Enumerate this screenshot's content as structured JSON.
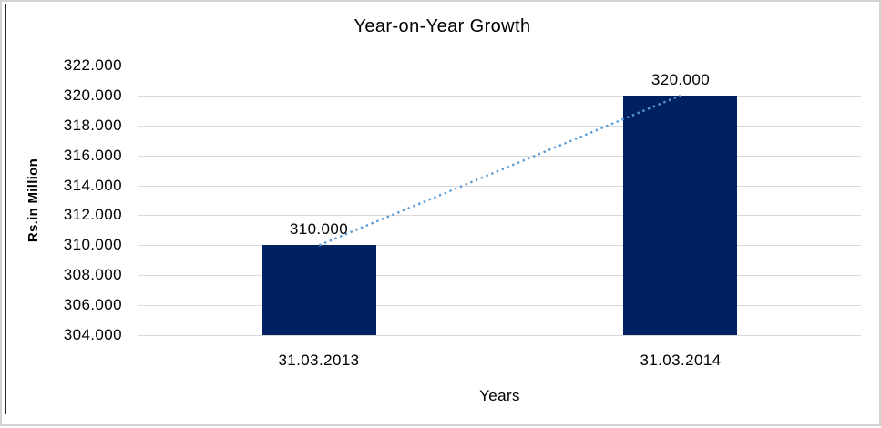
{
  "window": {
    "background": "#ffffff",
    "outer_border_color": "#d2d2d2",
    "left_rule_color": "#2a2a2a",
    "text_color": "#000000"
  },
  "chart_data": {
    "type": "bar",
    "title": "Year-on-Year Growth",
    "xlabel": "Years",
    "ylabel": "Rs.in Million",
    "categories": [
      "31.03.2013",
      "31.03.2014"
    ],
    "values": [
      310000,
      320000
    ],
    "data_labels": [
      "310.000",
      "320.000"
    ],
    "ylim": [
      304000,
      322000
    ],
    "ytick_values": [
      322000,
      320000,
      318000,
      316000,
      314000,
      312000,
      310000,
      308000,
      306000,
      304000
    ],
    "ytick_labels": [
      "322.000",
      "320.000",
      "318.000",
      "316.000",
      "314.000",
      "312.000",
      "310.000",
      "308.000",
      "306.000",
      "304.000"
    ],
    "grid": true,
    "legend": "none",
    "bar_color": "#002161",
    "gridline_color": "#d9d9d9",
    "trendline": {
      "style": "dotted",
      "color": "#5b9bd5",
      "from_category": "31.03.2013",
      "to_category": "31.03.2014"
    }
  }
}
